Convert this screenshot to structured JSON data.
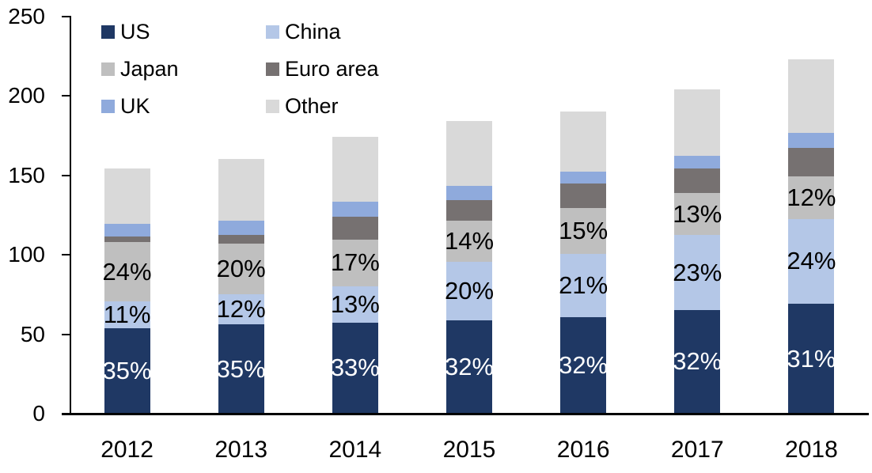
{
  "chart_data": {
    "type": "bar",
    "variant": "stacked-vertical",
    "title": "",
    "categories": [
      "2012",
      "2013",
      "2014",
      "2015",
      "2016",
      "2017",
      "2018"
    ],
    "series": [
      {
        "name": "US",
        "color": "#1f3864",
        "values": [
          53.9,
          56.0,
          57.4,
          58.9,
          60.8,
          65.3,
          69.1
        ],
        "labels": [
          "35%",
          "35%",
          "33%",
          "32%",
          "32%",
          "32%",
          "31%"
        ],
        "label_color": "#ffffff"
      },
      {
        "name": "China",
        "color": "#b4c7e7",
        "values": [
          16.9,
          19.2,
          22.6,
          36.8,
          39.9,
          46.9,
          53.5
        ],
        "labels": [
          "11%",
          "12%",
          "13%",
          "20%",
          "21%",
          "23%",
          "24%"
        ],
        "label_color": "#000000"
      },
      {
        "name": "Japan",
        "color": "#bfbfbf",
        "values": [
          37.0,
          32.0,
          29.6,
          25.8,
          28.5,
          26.5,
          26.8
        ],
        "labels": [
          "24%",
          "20%",
          "17%",
          "14%",
          "15%",
          "13%",
          "12%"
        ],
        "label_color": "#000000"
      },
      {
        "name": "Euro area",
        "color": "#767171",
        "values": [
          3.5,
          5.0,
          14.1,
          12.7,
          15.4,
          15.4,
          17.9
        ],
        "labels": null,
        "label_color": null
      },
      {
        "name": "UK",
        "color": "#8faadc",
        "values": [
          7.9,
          9.2,
          9.6,
          9.0,
          7.8,
          8.1,
          9.5
        ],
        "labels": null,
        "label_color": null
      },
      {
        "name": "Other",
        "color": "#d9d9d9",
        "values": [
          34.8,
          38.6,
          40.7,
          40.8,
          37.6,
          41.8,
          46.2
        ],
        "labels": null,
        "label_color": null
      }
    ],
    "stack_order_bottom_to_top": [
      "US",
      "China",
      "Japan",
      "Euro area",
      "UK",
      "Other"
    ],
    "approx_totals": [
      154,
      160,
      174,
      184,
      190,
      204,
      223
    ],
    "y_axis": {
      "min": 0,
      "max": 250,
      "tick_step": 50,
      "ticks": [
        0,
        50,
        100,
        150,
        200,
        250
      ]
    },
    "x_axis": {
      "tick_labels": [
        "2012",
        "2013",
        "2014",
        "2015",
        "2016",
        "2017",
        "2018"
      ]
    },
    "legend": {
      "position": "top-left",
      "columns": 2,
      "order": [
        "US",
        "China",
        "Japan",
        "Euro area",
        "UK",
        "Other"
      ]
    },
    "grid": "off",
    "axis_color": "#000000",
    "background_color": "#ffffff"
  }
}
